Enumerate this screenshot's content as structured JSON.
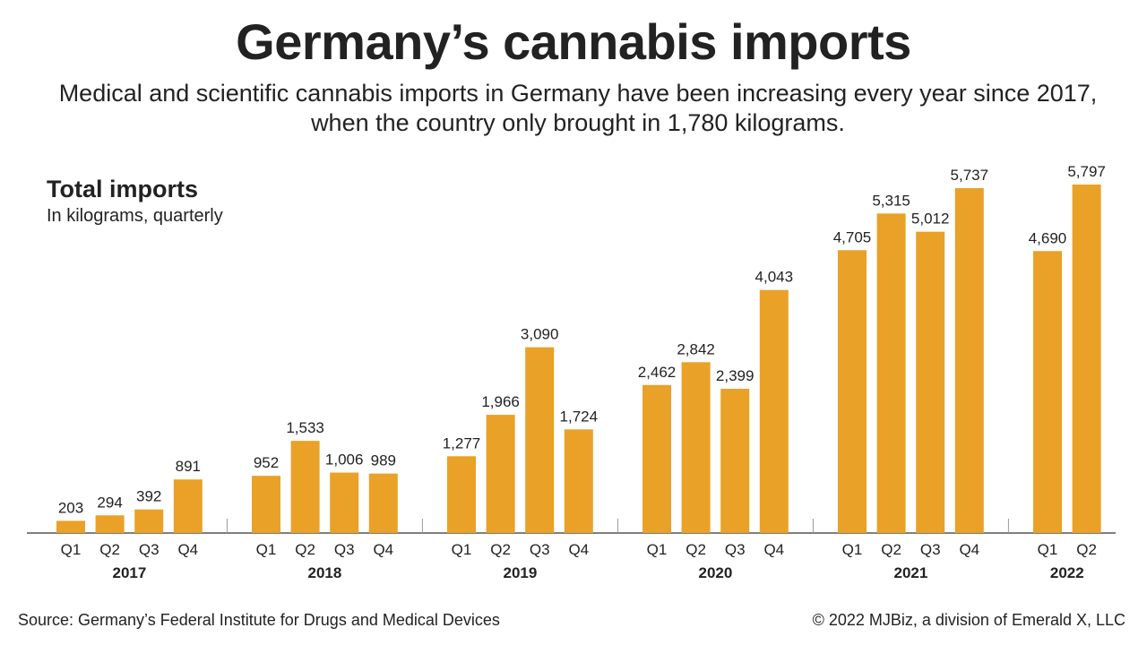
{
  "header": {
    "title": "Germany’s cannabis imports",
    "subtitle": "Medical and scientific cannabis imports in Germany have been increasing every year since 2017, when the country only brought in 1,780 kilograms."
  },
  "panel": {
    "title": "Total imports",
    "subtitle": "In kilograms, quarterly"
  },
  "footer": {
    "source": "Source: Germany’s Federal Institute for Drugs and Medical Devices",
    "copyright": "© 2022 MJBiz, a division of Emerald X, LLC"
  },
  "colors": {
    "bar": "#E9A127",
    "axis": "#555555",
    "text": "#222222"
  },
  "chart_data": {
    "type": "bar",
    "title": "Total imports",
    "subtitle": "In kilograms, quarterly",
    "xlabel": "",
    "ylabel": "",
    "ylim": [
      0,
      5797
    ],
    "grid": false,
    "groups": [
      {
        "year": "2017",
        "quarters": [
          "Q1",
          "Q2",
          "Q3",
          "Q4"
        ],
        "values": [
          203,
          294,
          392,
          891
        ],
        "labels": [
          "203",
          "294",
          "392",
          "891"
        ]
      },
      {
        "year": "2018",
        "quarters": [
          "Q1",
          "Q2",
          "Q3",
          "Q4"
        ],
        "values": [
          952,
          1533,
          1006,
          989
        ],
        "labels": [
          "952",
          "1,533",
          "1,006",
          "989"
        ]
      },
      {
        "year": "2019",
        "quarters": [
          "Q1",
          "Q2",
          "Q3",
          "Q4"
        ],
        "values": [
          1277,
          1966,
          3090,
          1724
        ],
        "labels": [
          "1,277",
          "1,966",
          "3,090",
          "1,724"
        ]
      },
      {
        "year": "2020",
        "quarters": [
          "Q1",
          "Q2",
          "Q3",
          "Q4"
        ],
        "values": [
          2462,
          2842,
          2399,
          4043
        ],
        "labels": [
          "2,462",
          "2,842",
          "2,399",
          "4,043"
        ]
      },
      {
        "year": "2021",
        "quarters": [
          "Q1",
          "Q2",
          "Q3",
          "Q4"
        ],
        "values": [
          4705,
          5315,
          5012,
          5737
        ],
        "labels": [
          "4,705",
          "5,315",
          "5,012",
          "5,737"
        ]
      },
      {
        "year": "2022",
        "quarters": [
          "Q1",
          "Q2"
        ],
        "values": [
          4690,
          5797
        ],
        "labels": [
          "4,690",
          "5,797"
        ]
      }
    ]
  }
}
